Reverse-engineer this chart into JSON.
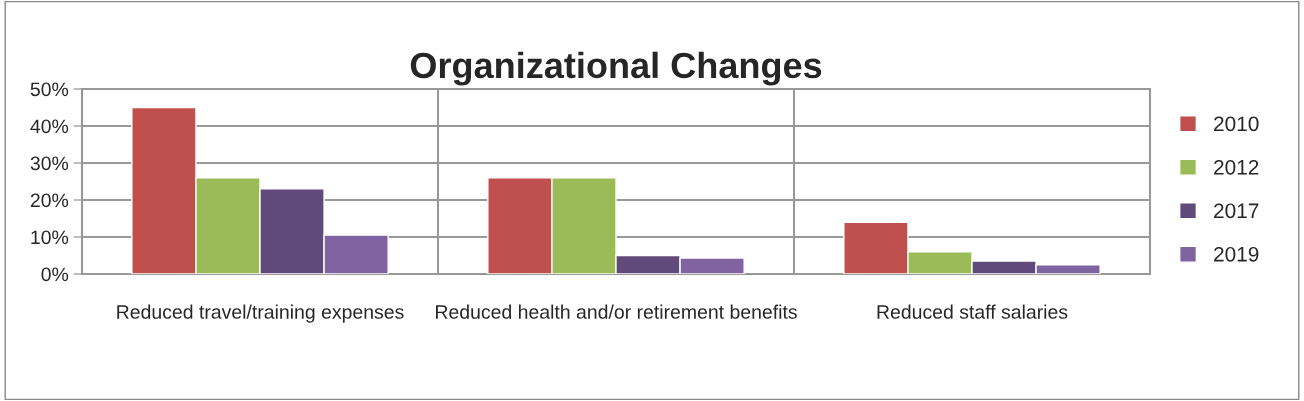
{
  "chart_data": {
    "type": "bar",
    "title": "Organizational Changes",
    "categories": [
      "Reduced travel/training expenses",
      "Reduced health and/or retirement benefits",
      "Reduced staff salaries"
    ],
    "series": [
      {
        "name": "2010",
        "color": "#c0504d",
        "values": [
          45,
          26,
          14
        ]
      },
      {
        "name": "2012",
        "color": "#9bbb59",
        "values": [
          26,
          26,
          6
        ]
      },
      {
        "name": "2017",
        "color": "#604a7b",
        "values": [
          23,
          5,
          3.5
        ]
      },
      {
        "name": "2019",
        "color": "#8064a2",
        "values": [
          10.5,
          4.3,
          2.5
        ]
      }
    ],
    "ylim": [
      0,
      50
    ],
    "yticks": [
      {
        "value": 0,
        "label": "0%"
      },
      {
        "value": 10,
        "label": "10%"
      },
      {
        "value": 20,
        "label": "20%"
      },
      {
        "value": 30,
        "label": "30%"
      },
      {
        "value": 40,
        "label": "40%"
      },
      {
        "value": 50,
        "label": "50%"
      }
    ],
    "grid": true,
    "legend": "right"
  }
}
